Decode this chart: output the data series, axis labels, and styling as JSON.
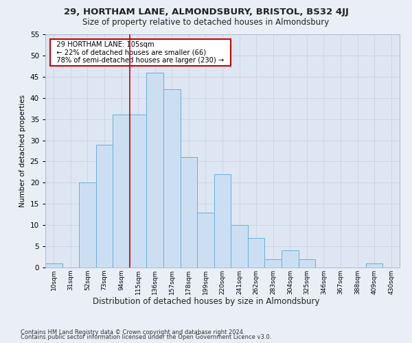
{
  "title": "29, HORTHAM LANE, ALMONDSBURY, BRISTOL, BS32 4JJ",
  "subtitle": "Size of property relative to detached houses in Almondsbury",
  "xlabel": "Distribution of detached houses by size in Almondsbury",
  "ylabel": "Number of detached properties",
  "footer1": "Contains HM Land Registry data © Crown copyright and database right 2024.",
  "footer2": "Contains public sector information licensed under the Open Government Licence v3.0.",
  "categories": [
    "10sqm",
    "31sqm",
    "52sqm",
    "73sqm",
    "94sqm",
    "115sqm",
    "136sqm",
    "157sqm",
    "178sqm",
    "199sqm",
    "220sqm",
    "241sqm",
    "262sqm",
    "283sqm",
    "304sqm",
    "325sqm",
    "346sqm",
    "367sqm",
    "388sqm",
    "409sqm",
    "430sqm"
  ],
  "values": [
    1,
    0,
    20,
    29,
    36,
    36,
    46,
    42,
    26,
    13,
    22,
    10,
    7,
    2,
    4,
    2,
    0,
    0,
    0,
    1,
    0
  ],
  "bar_color": "#ccdff2",
  "bar_edge_color": "#6aaed6",
  "property_line_x": 4.52,
  "annotation_text": "  29 HORTHAM LANE: 105sqm  \n  ← 22% of detached houses are smaller (66)  \n  78% of semi-detached houses are larger (230) →  ",
  "annotation_box_color": "#ffffff",
  "annotation_box_edge_color": "#cc0000",
  "red_line_color": "#cc0000",
  "grid_color": "#c8d4e8",
  "bg_color": "#dde6f2",
  "fig_bg_color": "#eaeff7",
  "ylim": [
    0,
    55
  ],
  "yticks": [
    0,
    5,
    10,
    15,
    20,
    25,
    30,
    35,
    40,
    45,
    50,
    55
  ]
}
